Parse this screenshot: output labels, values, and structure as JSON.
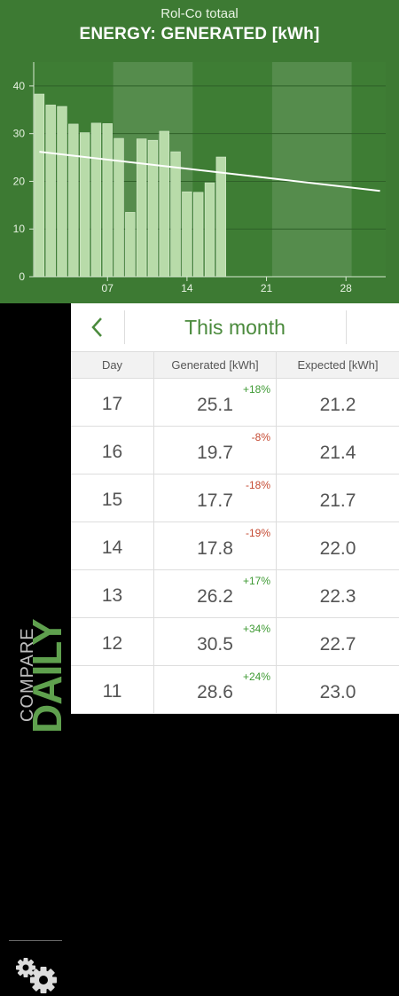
{
  "header": {
    "subtitle": "Rol-Co totaal",
    "title": "ENERGY: GENERATED [kWh]"
  },
  "chart_data": {
    "type": "bar",
    "ylim": [
      0,
      45
    ],
    "xlim": [
      0.5,
      31.5
    ],
    "yticks": [
      0,
      10,
      20,
      30,
      40
    ],
    "xticks": [
      {
        "day": 7,
        "label": "07"
      },
      {
        "day": 14,
        "label": "14"
      },
      {
        "day": 21,
        "label": "21"
      },
      {
        "day": 28,
        "label": "28"
      }
    ],
    "shaded_weeks": [
      [
        7.5,
        14.5
      ],
      [
        21.5,
        28.5
      ]
    ],
    "bars": [
      {
        "day": 1,
        "value": 38.3
      },
      {
        "day": 2,
        "value": 36.0
      },
      {
        "day": 3,
        "value": 35.7
      },
      {
        "day": 4,
        "value": 32.0
      },
      {
        "day": 5,
        "value": 30.2
      },
      {
        "day": 6,
        "value": 32.2
      },
      {
        "day": 7,
        "value": 32.1
      },
      {
        "day": 8,
        "value": 29.0
      },
      {
        "day": 9,
        "value": 13.5
      },
      {
        "day": 10,
        "value": 28.9
      },
      {
        "day": 11,
        "value": 28.6
      },
      {
        "day": 12,
        "value": 30.5
      },
      {
        "day": 13,
        "value": 26.2
      },
      {
        "day": 14,
        "value": 17.8
      },
      {
        "day": 15,
        "value": 17.7
      },
      {
        "day": 16,
        "value": 19.7
      },
      {
        "day": 17,
        "value": 25.1
      }
    ],
    "expected_line": [
      {
        "day": 1,
        "value": 26.2
      },
      {
        "day": 31,
        "value": 18.0
      }
    ]
  },
  "sidebar": {
    "compare": "COMPARE",
    "daily": "DAILY",
    "settings_icon": "gear-icon"
  },
  "nav": {
    "back_icon": "chevron-left-icon",
    "period": "This month"
  },
  "table": {
    "headers": {
      "day": "Day",
      "generated": "Generated [kWh]",
      "expected": "Expected [kWh]"
    },
    "rows": [
      {
        "day": "17",
        "generated": "25.1",
        "pct": "+18%",
        "expected": "21.2"
      },
      {
        "day": "16",
        "generated": "19.7",
        "pct": "-8%",
        "expected": "21.4"
      },
      {
        "day": "15",
        "generated": "17.7",
        "pct": "-18%",
        "expected": "21.7"
      },
      {
        "day": "14",
        "generated": "17.8",
        "pct": "-19%",
        "expected": "22.0"
      },
      {
        "day": "13",
        "generated": "26.2",
        "pct": "+17%",
        "expected": "22.3"
      },
      {
        "day": "12",
        "generated": "30.5",
        "pct": "+34%",
        "expected": "22.7"
      },
      {
        "day": "11",
        "generated": "28.6",
        "pct": "+24%",
        "expected": "23.0"
      }
    ]
  },
  "colors": {
    "header_bg": "#3d7a33",
    "bar_fill": "#b8dba9",
    "accent": "#4a8a3c",
    "positive": "#3f9a34",
    "negative": "#c54a32"
  }
}
